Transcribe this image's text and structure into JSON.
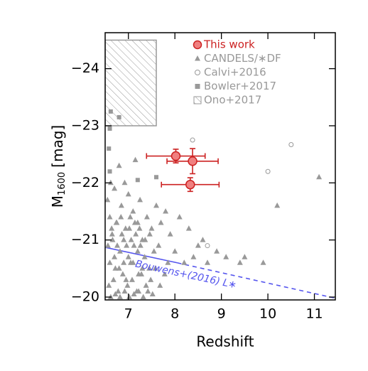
{
  "chart_data": {
    "type": "scatter",
    "xlabel": "Redshift",
    "ylabel": {
      "main": "M",
      "sub": "1600",
      "unit": "[mag]"
    },
    "xlim": [
      6.5,
      11.45
    ],
    "ylim": [
      -19.95,
      -24.63
    ],
    "xticks": [
      7,
      8,
      9,
      10,
      11
    ],
    "yticks": [
      {
        "value": -24,
        "label": "−24"
      },
      {
        "value": -23,
        "label": "−23"
      },
      {
        "value": -22,
        "label": "−22"
      },
      {
        "value": -21,
        "label": "−21"
      },
      {
        "value": -20,
        "label": "−20"
      }
    ],
    "series": [
      {
        "name": "This work",
        "color": "#cc2222",
        "marker": "circle-filled",
        "x": [
          8.02,
          8.38,
          8.33
        ],
        "values": [
          -22.47,
          -22.38,
          -21.97
        ],
        "xerr": [
          0.63,
          0.55,
          0.62
        ],
        "yerr": [
          0.12,
          0.22,
          0.12
        ]
      },
      {
        "name": "CANDELS/∗DF",
        "color": "#999999",
        "marker": "triangle",
        "x": [
          6.55,
          6.6,
          6.62,
          6.65,
          6.7,
          6.72,
          6.75,
          6.8,
          6.82,
          6.85,
          6.9,
          6.92,
          6.95,
          7.0,
          7.02,
          7.05,
          7.1,
          7.12,
          7.15,
          7.2,
          7.22,
          7.25,
          7.3,
          7.35,
          7.4,
          7.45,
          7.5,
          7.55,
          7.6,
          7.65,
          7.7,
          7.8,
          7.85,
          7.9,
          8.0,
          8.1,
          8.2,
          8.3,
          8.4,
          8.5,
          8.6,
          8.7,
          8.9,
          9.1,
          9.4,
          9.5,
          9.9,
          10.2,
          11.1,
          6.58,
          6.68,
          6.78,
          6.88,
          6.98,
          7.08,
          7.18,
          7.28,
          7.38,
          7.48,
          7.58,
          7.68,
          7.78,
          6.6,
          6.7,
          6.8,
          6.9,
          7.0,
          7.1,
          7.2,
          7.3,
          6.56,
          6.66,
          6.76,
          6.86,
          6.96,
          7.06,
          7.16,
          7.26,
          7.36,
          7.46,
          6.64,
          6.74,
          6.84,
          6.94,
          7.04,
          7.14,
          7.24,
          6.62,
          6.72,
          6.82,
          6.92,
          7.02,
          7.12,
          7.22,
          7.32,
          7.42,
          7.52
        ],
        "values": [
          -21.7,
          -21.4,
          -22.0,
          -21.1,
          -21.9,
          -20.5,
          -21.3,
          -22.3,
          -20.8,
          -21.6,
          -21.0,
          -22.0,
          -20.3,
          -21.8,
          -21.2,
          -20.6,
          -21.5,
          -20.9,
          -22.4,
          -21.3,
          -20.4,
          -21.7,
          -21.0,
          -20.7,
          -21.4,
          -20.5,
          -21.2,
          -20.8,
          -21.6,
          -20.9,
          -21.3,
          -21.5,
          -20.6,
          -21.1,
          -20.8,
          -21.4,
          -20.6,
          -21.2,
          -20.7,
          -20.9,
          -21.0,
          -20.6,
          -20.8,
          -20.7,
          -20.6,
          -20.7,
          -20.6,
          -21.6,
          -22.1,
          -20.2,
          -20.3,
          -20.1,
          -20.4,
          -20.2,
          -20.3,
          -20.1,
          -20.4,
          -20.2,
          -20.3,
          -20.5,
          -20.2,
          -20.4,
          -20.6,
          -20.7,
          -20.5,
          -20.6,
          -20.7,
          -20.6,
          -20.8,
          -20.5,
          -20.9,
          -21.0,
          -20.9,
          -21.1,
          -20.9,
          -21.0,
          -21.1,
          -20.9,
          -21.0,
          -21.1,
          -21.2,
          -21.3,
          -21.4,
          -21.2,
          -21.4,
          -21.3,
          -21.2,
          -20.0,
          -20.05,
          -20.0,
          -20.1,
          -20.0,
          -20.05,
          -20.1,
          -20.0,
          -20.1,
          -20.05
        ]
      },
      {
        "name": "Calvi+2016",
        "color": "#999999",
        "marker": "circle-open",
        "x": [
          8.38,
          10.0,
          10.5,
          8.7
        ],
        "values": [
          -22.75,
          -22.2,
          -22.67,
          -20.9
        ]
      },
      {
        "name": "Bowler+2017",
        "color": "#999999",
        "marker": "square",
        "x": [
          6.6,
          6.58,
          6.8,
          6.6,
          7.2,
          7.6,
          6.62
        ],
        "values": [
          -22.95,
          -22.6,
          -23.15,
          -22.2,
          -22.05,
          -22.1,
          -23.25
        ]
      },
      {
        "name": "Ono+2017",
        "color": "#999999",
        "marker": "hatched-box",
        "x": [
          6.5,
          7.6
        ],
        "values": [
          -23.0,
          -24.5
        ]
      }
    ],
    "lines": [
      {
        "color": "#5555ee",
        "style": "solid",
        "x": [
          6.5,
          8.05
        ],
        "values": [
          -20.87,
          -20.6
        ]
      },
      {
        "color": "#5555ee",
        "style": "dashed",
        "x": [
          8.05,
          11.45
        ],
        "values": [
          -20.6,
          -19.98
        ]
      }
    ],
    "annotation": "Bouwens+(2016) L∗"
  }
}
